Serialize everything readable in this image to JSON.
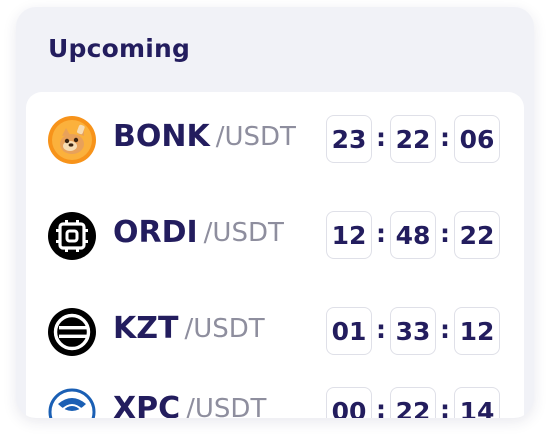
{
  "section": {
    "title": "Upcoming"
  },
  "colors": {
    "heading": "#231d5e",
    "quote": "#8e8e9e",
    "card_bg": "#f1f2f7"
  },
  "listings": [
    {
      "base": "BONK",
      "quote": "/USDT",
      "icon": "bonk-icon",
      "countdown": {
        "hours": "23",
        "minutes": "22",
        "seconds": "06"
      }
    },
    {
      "base": "ORDI",
      "quote": "/USDT",
      "icon": "ordi-icon",
      "countdown": {
        "hours": "12",
        "minutes": "48",
        "seconds": "22"
      }
    },
    {
      "base": "KZT",
      "quote": "/USDT",
      "icon": "kzt-icon",
      "countdown": {
        "hours": "01",
        "minutes": "33",
        "seconds": "12"
      }
    },
    {
      "base": "XPC",
      "quote": "/USDT",
      "icon": "xpc-icon",
      "countdown": {
        "hours": "00",
        "minutes": "22",
        "seconds": "14"
      }
    }
  ],
  "timer_separator": ":"
}
